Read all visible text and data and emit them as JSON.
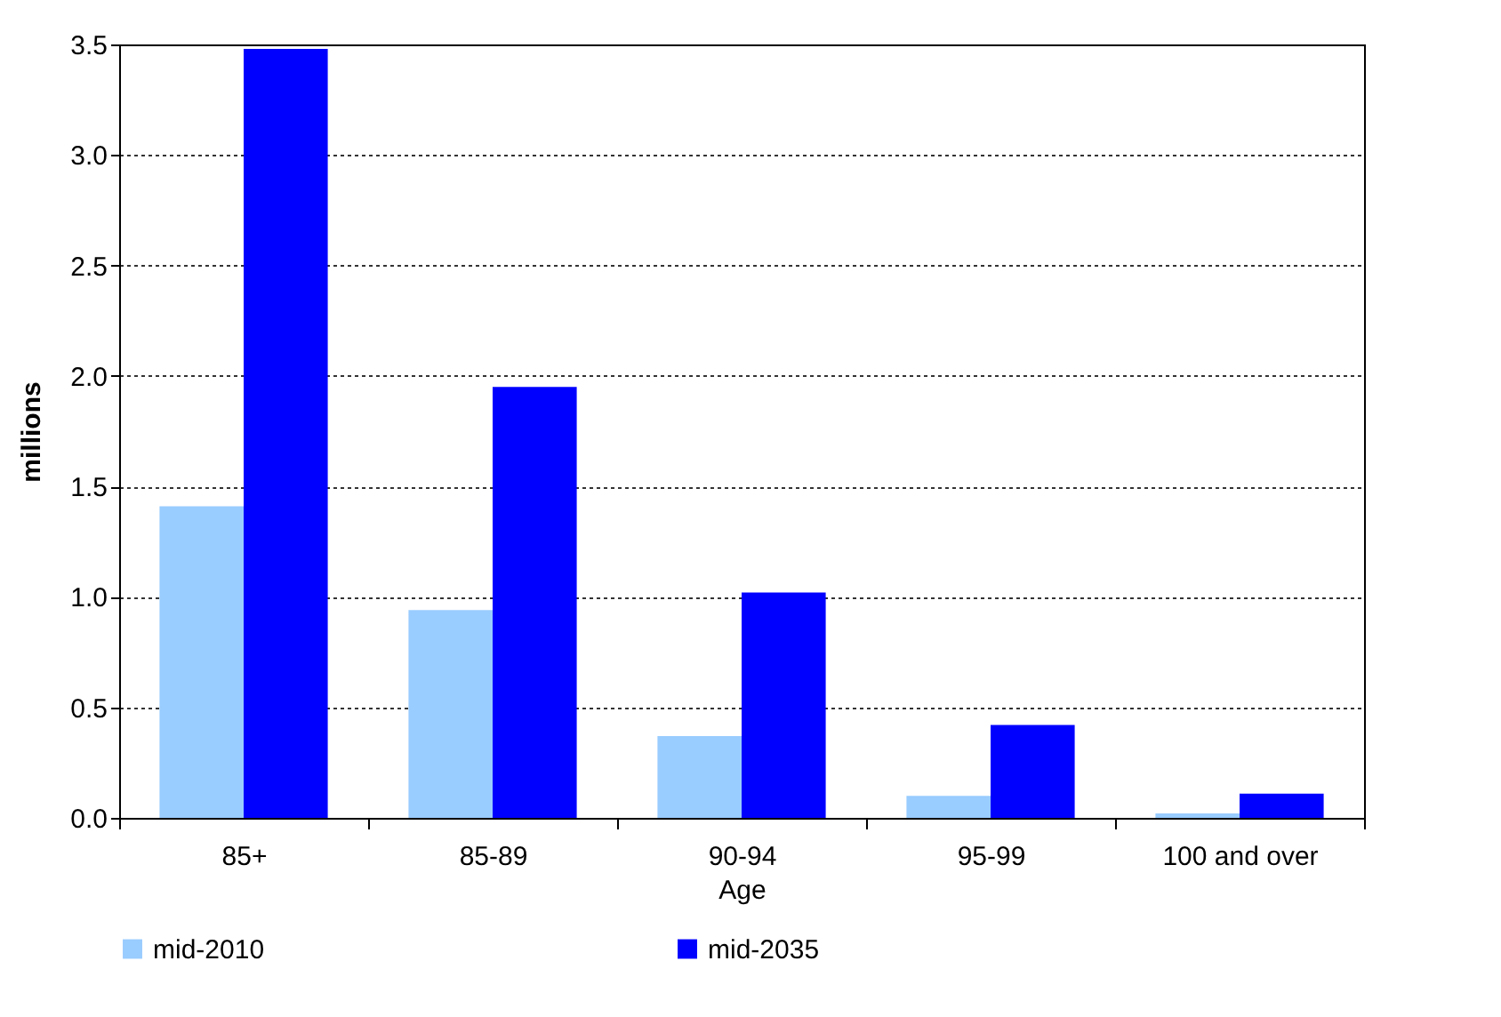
{
  "chart_data": {
    "type": "bar",
    "xlabel": "Age",
    "ylabel": "millions",
    "categories": [
      "85+",
      "85-89",
      "90-94",
      "95-99",
      "100 and over"
    ],
    "series": [
      {
        "name": "mid-2010",
        "color": "#99ccff",
        "values": [
          1.41,
          0.94,
          0.37,
          0.1,
          0.02
        ]
      },
      {
        "name": "mid-2035",
        "color": "#0000ff",
        "values": [
          3.48,
          1.95,
          1.02,
          0.42,
          0.11
        ]
      }
    ],
    "ylim": [
      0,
      3.5
    ],
    "yticks": [
      {
        "value": 0,
        "label": "0.0"
      },
      0.5,
      {
        "value": 1,
        "label": "1.0"
      },
      1.5,
      {
        "value": 2,
        "label": "2.0"
      },
      2.5,
      {
        "value": 3,
        "label": "3.0"
      },
      3.5
    ],
    "grid": "y",
    "legend": "bottom"
  }
}
